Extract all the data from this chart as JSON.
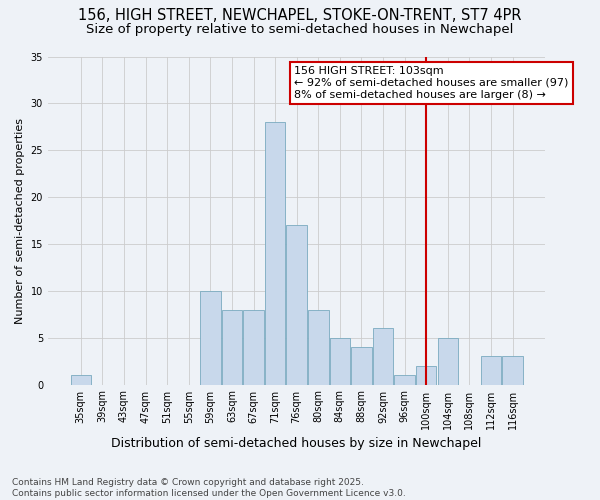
{
  "title1": "156, HIGH STREET, NEWCHAPEL, STOKE-ON-TRENT, ST7 4PR",
  "title2": "Size of property relative to semi-detached houses in Newchapel",
  "xlabel": "Distribution of semi-detached houses by size in Newchapel",
  "ylabel": "Number of semi-detached properties",
  "categories": [
    "35sqm",
    "39sqm",
    "43sqm",
    "47sqm",
    "51sqm",
    "55sqm",
    "59sqm",
    "63sqm",
    "67sqm",
    "71sqm",
    "76sqm",
    "80sqm",
    "84sqm",
    "88sqm",
    "92sqm",
    "96sqm",
    "100sqm",
    "104sqm",
    "108sqm",
    "112sqm",
    "116sqm"
  ],
  "values": [
    1,
    0,
    0,
    0,
    0,
    0,
    10,
    8,
    8,
    28,
    17,
    8,
    5,
    4,
    6,
    1,
    2,
    5,
    0,
    3,
    3
  ],
  "bar_color": "#c8d8eb",
  "bar_edge_color": "#7aaabf",
  "grid_color": "#cccccc",
  "background_color": "#eef2f7",
  "vline_index": 16,
  "vline_color": "#cc0000",
  "annotation_text": "156 HIGH STREET: 103sqm\n← 92% of semi-detached houses are smaller (97)\n8% of semi-detached houses are larger (8) →",
  "annotation_box_color": "white",
  "annotation_box_edge": "#cc0000",
  "footnote": "Contains HM Land Registry data © Crown copyright and database right 2025.\nContains public sector information licensed under the Open Government Licence v3.0.",
  "ylim": [
    0,
    35
  ],
  "yticks": [
    0,
    5,
    10,
    15,
    20,
    25,
    30,
    35
  ],
  "title1_fontsize": 10.5,
  "title2_fontsize": 9.5,
  "xlabel_fontsize": 9,
  "ylabel_fontsize": 8,
  "tick_fontsize": 7,
  "annotation_fontsize": 8,
  "footnote_fontsize": 6.5
}
